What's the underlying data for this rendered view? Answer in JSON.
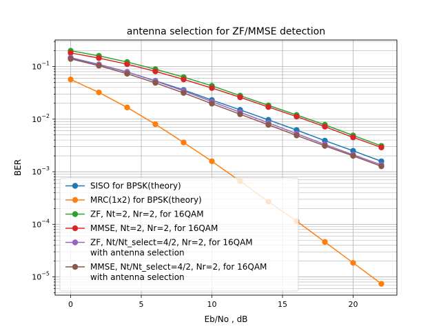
{
  "chart_data": {
    "type": "line",
    "title": "antenna selection for ZF/MMSE detection",
    "xlabel": "Eb/No , dB",
    "ylabel": "BER",
    "yscale": "log",
    "xlim": [
      -1.1,
      23.1
    ],
    "ylim": [
      4.5e-06,
      0.32
    ],
    "grid": "both major and minor",
    "legend_position": "lower-left",
    "x_ticks": [
      0,
      5,
      10,
      15,
      20
    ],
    "y_ticks": [
      {
        "value": 1e-05,
        "base": "10",
        "exp": "−5"
      },
      {
        "value": 0.0001,
        "base": "10",
        "exp": "−4"
      },
      {
        "value": 0.001,
        "base": "10",
        "exp": "−3"
      },
      {
        "value": 0.01,
        "base": "10",
        "exp": "−2"
      },
      {
        "value": 0.1,
        "base": "10",
        "exp": "−1"
      }
    ],
    "x": [
      0,
      2,
      4,
      6,
      8,
      10,
      12,
      14,
      16,
      18,
      20,
      22
    ],
    "series": [
      {
        "name": "SISO for BPSK(theory)",
        "color": "#1f77b4",
        "values": [
          0.146,
          0.109,
          0.0786,
          0.0536,
          0.0359,
          0.0231,
          0.015,
          0.0097,
          0.0062,
          0.0039,
          0.0025,
          0.00158
        ]
      },
      {
        "name": "MRC(1x2) for BPSK(theory)",
        "color": "#ff7f0e",
        "values": [
          0.0569,
          0.0322,
          0.0167,
          0.008,
          0.0036,
          0.00158,
          0.00066,
          0.00027,
          0.000115,
          4.62e-05,
          1.85e-05,
          7.4e-06
        ]
      },
      {
        "name": "ZF, Nt=2, Nr=2, for 16QAM",
        "color": "#2ca02c",
        "values": [
          0.2,
          0.16,
          0.122,
          0.089,
          0.063,
          0.043,
          0.028,
          0.0183,
          0.012,
          0.0078,
          0.0049,
          0.0031
        ]
      },
      {
        "name": "MMSE, Nt=2, Nr=2, for 16QAM",
        "color": "#d62728",
        "values": [
          0.182,
          0.145,
          0.111,
          0.081,
          0.057,
          0.039,
          0.026,
          0.017,
          0.0112,
          0.0072,
          0.0045,
          0.0029
        ]
      },
      {
        "name": "ZF, Nt/Nt_select=4/2, Nr=2, for 16QAM\nwith antenna selection",
        "color": "#9467bd",
        "values": [
          0.148,
          0.11,
          0.079,
          0.053,
          0.0345,
          0.0215,
          0.0135,
          0.0085,
          0.0053,
          0.0033,
          0.0021,
          0.00135
        ]
      },
      {
        "name": "MMSE, Nt/Nt_select=4/2, Nr=2, for 16QAM\nwith antenna selection",
        "color": "#8c564b",
        "values": [
          0.14,
          0.104,
          0.073,
          0.049,
          0.0315,
          0.0197,
          0.0124,
          0.0078,
          0.0049,
          0.0031,
          0.002,
          0.00127
        ]
      }
    ]
  }
}
